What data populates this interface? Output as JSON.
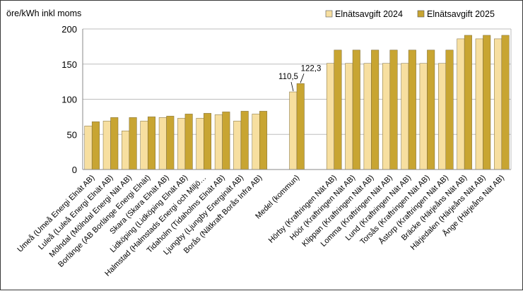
{
  "chart_data": {
    "type": "bar",
    "ylabel": "öre/kWh inkl moms",
    "ylim": [
      0,
      200
    ],
    "yticks": [
      0,
      50,
      100,
      150,
      200
    ],
    "grid": true,
    "legend_position": "top-right",
    "colors": {
      "Elnätsavgift 2024": "#f7dfa0",
      "Elnätsavgift 2025": "#c8a532"
    },
    "categories": [
      "Umeå (Umeå Energi Elnät AB)",
      "Luleå (Luleå Energi Elnät AB)",
      "Mölndal (Mölndal Energi Nät AB)",
      "Borlänge (AB Borlänge Energi Elnät)",
      "Skara (Skara Elnät AB)",
      "Lidköping (Lidköping Elnät AB)",
      "Halmstad (Halmstads Energi och Miljö…",
      "Tidaholm (Tidaholms Elnät AB)",
      "Ljungby (Ljungby Energinät AB)",
      "Borås (Nätkraft Borås Infra AB)",
      "",
      "Medel (kommun)",
      "",
      "Hörby (Kraftringen Nät AB)",
      "Höör (Kraftringen Nät AB)",
      "Klippan (Kraftringen Nät AB)",
      "Lomma (Kraftringen Nät AB)",
      "Lund (Kraftringen Nät AB)",
      "Torsås (Kraftringen Nät AB)",
      "Åstorp (Kraftringen Nät AB)",
      "Bräcke (Härjeåns Nät AB)",
      "Härjedalen (Härjeåns Nät AB)",
      "Ånge (Härjeåns Nät AB)"
    ],
    "series": [
      {
        "name": "Elnätsavgift 2024",
        "values": [
          62,
          69,
          55,
          69,
          74,
          73,
          73,
          78,
          69,
          79,
          null,
          110.5,
          null,
          151,
          151,
          151,
          151,
          151,
          151,
          151,
          186,
          186,
          186
        ]
      },
      {
        "name": "Elnätsavgift 2025",
        "values": [
          68,
          74,
          74,
          75,
          76,
          79,
          80,
          82,
          83,
          83,
          null,
          122.3,
          null,
          170,
          170,
          170,
          170,
          170,
          170,
          170,
          191,
          191,
          191
        ]
      }
    ],
    "annotations": [
      "110,5",
      "122,3"
    ]
  }
}
